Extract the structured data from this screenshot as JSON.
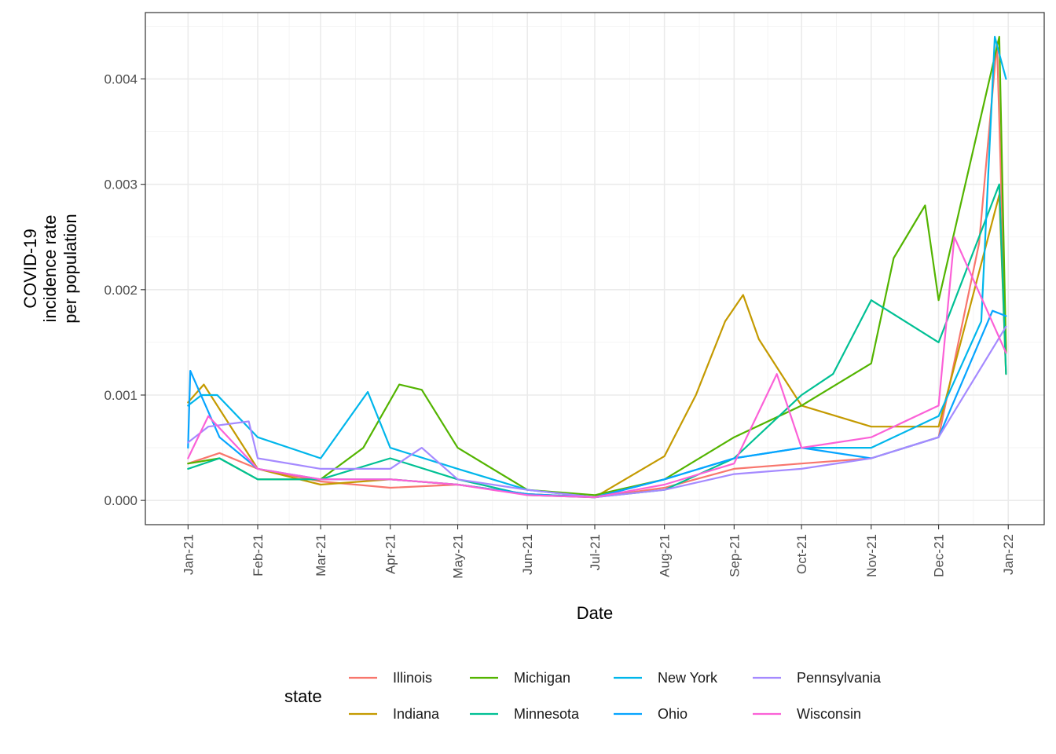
{
  "chart_data": {
    "type": "line",
    "xlabel": "Date",
    "ylabel_lines": [
      "COVID-19",
      "incidence rate",
      "per population"
    ],
    "x_ticks": [
      "Jan-21",
      "Feb-21",
      "Mar-21",
      "Apr-21",
      "May-21",
      "Jun-21",
      "Jul-21",
      "Aug-21",
      "Sep-21",
      "Oct-21",
      "Nov-21",
      "Dec-21",
      "Jan-22"
    ],
    "y_ticks": [
      "0.000",
      "0.001",
      "0.002",
      "0.003",
      "0.004"
    ],
    "x_range": [
      "2020-12-13",
      "2022-01-17"
    ],
    "ylim": [
      -0.00023,
      0.00463
    ],
    "grid": true,
    "legend": {
      "title": "state",
      "position": "bottom"
    },
    "series": [
      {
        "name": "Illinois",
        "color": "#F8766D",
        "points": [
          [
            "2021-01-01",
            0.00035
          ],
          [
            "2021-01-15",
            0.00045
          ],
          [
            "2021-02-01",
            0.0003
          ],
          [
            "2021-03-01",
            0.00018
          ],
          [
            "2021-04-01",
            0.00012
          ],
          [
            "2021-05-01",
            0.00015
          ],
          [
            "2021-06-01",
            6e-05
          ],
          [
            "2021-07-01",
            3e-05
          ],
          [
            "2021-08-01",
            0.00012
          ],
          [
            "2021-09-01",
            0.0003
          ],
          [
            "2021-10-01",
            0.00035
          ],
          [
            "2021-11-01",
            0.0004
          ],
          [
            "2021-12-01",
            0.0006
          ],
          [
            "2021-12-19",
            0.00244
          ],
          [
            "2021-12-27",
            0.00435
          ],
          [
            "2021-12-31",
            0.0014
          ]
        ]
      },
      {
        "name": "Indiana",
        "color": "#C49A00",
        "points": [
          [
            "2021-01-01",
            0.00093
          ],
          [
            "2021-01-08",
            0.0011
          ],
          [
            "2021-02-01",
            0.0003
          ],
          [
            "2021-03-01",
            0.00015
          ],
          [
            "2021-04-01",
            0.0002
          ],
          [
            "2021-05-01",
            0.00015
          ],
          [
            "2021-06-01",
            6e-05
          ],
          [
            "2021-07-01",
            3e-05
          ],
          [
            "2021-08-01",
            0.00042
          ],
          [
            "2021-08-15",
            0.001
          ],
          [
            "2021-08-28",
            0.0017
          ],
          [
            "2021-09-05",
            0.00195
          ],
          [
            "2021-09-12",
            0.00153
          ],
          [
            "2021-10-01",
            0.0009
          ],
          [
            "2021-11-01",
            0.0007
          ],
          [
            "2021-12-01",
            0.0007
          ],
          [
            "2021-12-28",
            0.0029
          ],
          [
            "2021-12-31",
            0.0012
          ]
        ]
      },
      {
        "name": "Michigan",
        "color": "#53B400",
        "points": [
          [
            "2021-01-01",
            0.00035
          ],
          [
            "2021-01-15",
            0.0004
          ],
          [
            "2021-02-01",
            0.0002
          ],
          [
            "2021-03-01",
            0.0002
          ],
          [
            "2021-03-20",
            0.0005
          ],
          [
            "2021-04-05",
            0.0011
          ],
          [
            "2021-04-15",
            0.00105
          ],
          [
            "2021-05-01",
            0.0005
          ],
          [
            "2021-06-01",
            0.0001
          ],
          [
            "2021-07-01",
            5e-05
          ],
          [
            "2021-08-01",
            0.0002
          ],
          [
            "2021-09-01",
            0.0006
          ],
          [
            "2021-10-01",
            0.0009
          ],
          [
            "2021-11-01",
            0.0013
          ],
          [
            "2021-11-11",
            0.0023
          ],
          [
            "2021-11-25",
            0.0028
          ],
          [
            "2021-12-01",
            0.0019
          ],
          [
            "2021-12-28",
            0.0044
          ],
          [
            "2021-12-31",
            0.0014
          ]
        ]
      },
      {
        "name": "Minnesota",
        "color": "#00C094",
        "points": [
          [
            "2021-01-01",
            0.0003
          ],
          [
            "2021-01-15",
            0.0004
          ],
          [
            "2021-02-01",
            0.0002
          ],
          [
            "2021-03-01",
            0.0002
          ],
          [
            "2021-04-01",
            0.0004
          ],
          [
            "2021-05-01",
            0.0002
          ],
          [
            "2021-06-01",
            5e-05
          ],
          [
            "2021-07-01",
            3e-05
          ],
          [
            "2021-08-01",
            0.0001
          ],
          [
            "2021-09-01",
            0.0004
          ],
          [
            "2021-10-01",
            0.001
          ],
          [
            "2021-10-15",
            0.0012
          ],
          [
            "2021-11-01",
            0.0019
          ],
          [
            "2021-12-01",
            0.0015
          ],
          [
            "2021-12-28",
            0.003
          ],
          [
            "2021-12-31",
            0.0012
          ]
        ]
      },
      {
        "name": "New York",
        "color": "#00B6EB",
        "points": [
          [
            "2021-01-01",
            0.0009
          ],
          [
            "2021-01-07",
            0.001
          ],
          [
            "2021-01-14",
            0.001
          ],
          [
            "2021-02-01",
            0.0006
          ],
          [
            "2021-03-01",
            0.0004
          ],
          [
            "2021-03-22",
            0.00103
          ],
          [
            "2021-04-01",
            0.0005
          ],
          [
            "2021-05-01",
            0.0003
          ],
          [
            "2021-06-01",
            0.0001
          ],
          [
            "2021-07-01",
            3e-05
          ],
          [
            "2021-08-01",
            0.0002
          ],
          [
            "2021-09-01",
            0.0004
          ],
          [
            "2021-10-01",
            0.0005
          ],
          [
            "2021-11-01",
            0.0005
          ],
          [
            "2021-12-01",
            0.0008
          ],
          [
            "2021-12-20",
            0.0017
          ],
          [
            "2021-12-26",
            0.0044
          ],
          [
            "2021-12-31",
            0.004
          ]
        ]
      },
      {
        "name": "Ohio",
        "color": "#06A4FF",
        "points": [
          [
            "2021-01-01",
            0.0005
          ],
          [
            "2021-01-02",
            0.00123
          ],
          [
            "2021-01-15",
            0.0006
          ],
          [
            "2021-02-01",
            0.0003
          ],
          [
            "2021-03-01",
            0.0002
          ],
          [
            "2021-04-01",
            0.0002
          ],
          [
            "2021-05-01",
            0.00015
          ],
          [
            "2021-06-01",
            6e-05
          ],
          [
            "2021-07-01",
            3e-05
          ],
          [
            "2021-08-01",
            0.0002
          ],
          [
            "2021-09-01",
            0.0004
          ],
          [
            "2021-10-01",
            0.0005
          ],
          [
            "2021-11-01",
            0.0004
          ],
          [
            "2021-12-01",
            0.0006
          ],
          [
            "2021-12-25",
            0.0018
          ],
          [
            "2021-12-31",
            0.00175
          ]
        ]
      },
      {
        "name": "Pennsylvania",
        "color": "#A58AFF",
        "points": [
          [
            "2021-01-01",
            0.00055
          ],
          [
            "2021-01-10",
            0.0007
          ],
          [
            "2021-01-28",
            0.00075
          ],
          [
            "2021-02-01",
            0.0004
          ],
          [
            "2021-03-01",
            0.0003
          ],
          [
            "2021-04-01",
            0.0003
          ],
          [
            "2021-04-15",
            0.0005
          ],
          [
            "2021-05-01",
            0.0002
          ],
          [
            "2021-06-01",
            0.0001
          ],
          [
            "2021-07-01",
            3e-05
          ],
          [
            "2021-08-01",
            0.0001
          ],
          [
            "2021-09-01",
            0.00025
          ],
          [
            "2021-10-01",
            0.0003
          ],
          [
            "2021-11-01",
            0.0004
          ],
          [
            "2021-12-01",
            0.0006
          ],
          [
            "2021-12-31",
            0.00165
          ]
        ]
      },
      {
        "name": "Wisconsin",
        "color": "#FB61D7",
        "points": [
          [
            "2021-01-01",
            0.0004
          ],
          [
            "2021-01-10",
            0.0008
          ],
          [
            "2021-02-01",
            0.0003
          ],
          [
            "2021-03-01",
            0.0002
          ],
          [
            "2021-04-01",
            0.0002
          ],
          [
            "2021-05-01",
            0.00015
          ],
          [
            "2021-06-01",
            5e-05
          ],
          [
            "2021-07-01",
            3e-05
          ],
          [
            "2021-08-01",
            0.00015
          ],
          [
            "2021-09-01",
            0.00035
          ],
          [
            "2021-09-20",
            0.0012
          ],
          [
            "2021-10-01",
            0.0005
          ],
          [
            "2021-11-01",
            0.0006
          ],
          [
            "2021-12-01",
            0.0009
          ],
          [
            "2021-12-08",
            0.0025
          ],
          [
            "2021-12-31",
            0.0014
          ]
        ]
      }
    ]
  }
}
